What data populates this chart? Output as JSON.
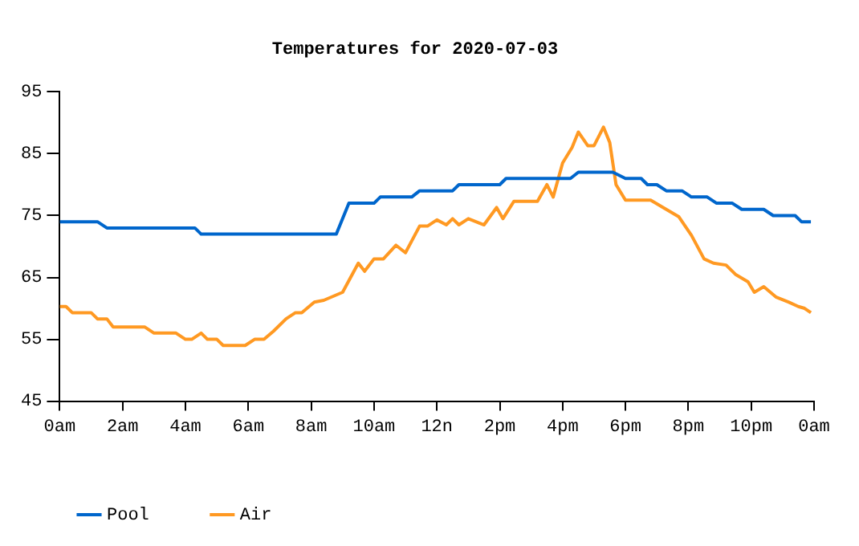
{
  "chart_data": {
    "type": "line",
    "title": "Temperatures for 2020-07-03",
    "xlim": [
      "2020-07-03T00:00",
      "2020-07-04T00:00"
    ],
    "xticks": [
      {
        "value": "2020-07-03T00:00",
        "label": "0am"
      },
      {
        "value": "2020-07-03T02:00",
        "label": "2am"
      },
      {
        "value": "2020-07-03T04:00",
        "label": "4am"
      },
      {
        "value": "2020-07-03T06:00",
        "label": "6am"
      },
      {
        "value": "2020-07-03T08:00",
        "label": "8am"
      },
      {
        "value": "2020-07-03T10:00",
        "label": "10am"
      },
      {
        "value": "2020-07-03T12:00",
        "label": "12n"
      },
      {
        "value": "2020-07-03T14:00",
        "label": "2pm"
      },
      {
        "value": "2020-07-03T16:00",
        "label": "4pm"
      },
      {
        "value": "2020-07-03T18:00",
        "label": "6pm"
      },
      {
        "value": "2020-07-03T20:00",
        "label": "8pm"
      },
      {
        "value": "2020-07-03T22:00",
        "label": "10pm"
      },
      {
        "value": "2020-07-04T00:00",
        "label": "0am"
      }
    ],
    "ylim": [
      45,
      95
    ],
    "yticks": [
      45,
      55,
      65,
      75,
      85,
      95
    ],
    "grid": false,
    "legend": "bottom left",
    "marker": "none",
    "line_style": "solid",
    "series": [
      {
        "name": "Pool",
        "color": "#0066cc",
        "x": [
          "2020-07-03T00:00",
          "2020-07-03T01:12",
          "2020-07-03T01:30",
          "2020-07-03T04:18",
          "2020-07-03T04:30",
          "2020-07-03T08:48",
          "2020-07-03T09:12",
          "2020-07-03T10:00",
          "2020-07-03T10:12",
          "2020-07-03T11:12",
          "2020-07-03T11:27",
          "2020-07-03T12:30",
          "2020-07-03T12:42",
          "2020-07-03T14:00",
          "2020-07-03T14:12",
          "2020-07-03T16:15",
          "2020-07-03T16:30",
          "2020-07-03T17:36",
          "2020-07-03T18:00",
          "2020-07-03T18:30",
          "2020-07-03T18:42",
          "2020-07-03T19:00",
          "2020-07-03T19:18",
          "2020-07-03T19:48",
          "2020-07-03T20:06",
          "2020-07-03T20:36",
          "2020-07-03T20:54",
          "2020-07-03T21:24",
          "2020-07-03T21:42",
          "2020-07-03T22:24",
          "2020-07-03T22:42",
          "2020-07-03T23:24",
          "2020-07-03T23:36",
          "2020-07-03T23:54"
        ],
        "values": [
          74,
          74,
          73,
          73,
          72,
          72,
          77,
          77,
          78,
          78,
          79,
          79,
          80,
          80,
          81,
          81,
          82,
          82,
          81,
          81,
          80,
          80,
          79,
          79,
          78,
          78,
          77,
          77,
          76,
          76,
          75,
          75,
          74,
          74
        ]
      },
      {
        "name": "Air",
        "color": "#ff9922",
        "x": [
          "2020-07-03T00:00",
          "2020-07-03T00:12",
          "2020-07-03T00:24",
          "2020-07-03T01:00",
          "2020-07-03T01:12",
          "2020-07-03T01:30",
          "2020-07-03T01:42",
          "2020-07-03T02:42",
          "2020-07-03T03:00",
          "2020-07-03T03:42",
          "2020-07-03T04:00",
          "2020-07-03T04:12",
          "2020-07-03T04:30",
          "2020-07-03T04:42",
          "2020-07-03T05:00",
          "2020-07-03T05:12",
          "2020-07-03T05:54",
          "2020-07-03T06:12",
          "2020-07-03T06:30",
          "2020-07-03T06:48",
          "2020-07-03T07:12",
          "2020-07-03T07:30",
          "2020-07-03T07:42",
          "2020-07-03T08:06",
          "2020-07-03T08:24",
          "2020-07-03T09:00",
          "2020-07-03T09:30",
          "2020-07-03T09:42",
          "2020-07-03T10:00",
          "2020-07-03T10:18",
          "2020-07-03T10:42",
          "2020-07-03T11:00",
          "2020-07-03T11:27",
          "2020-07-03T11:42",
          "2020-07-03T12:00",
          "2020-07-03T12:18",
          "2020-07-03T12:30",
          "2020-07-03T12:42",
          "2020-07-03T13:00",
          "2020-07-03T13:30",
          "2020-07-03T13:54",
          "2020-07-03T14:06",
          "2020-07-03T14:27",
          "2020-07-03T15:12",
          "2020-07-03T15:30",
          "2020-07-03T15:42",
          "2020-07-03T16:00",
          "2020-07-03T16:18",
          "2020-07-03T16:30",
          "2020-07-03T16:48",
          "2020-07-03T17:00",
          "2020-07-03T17:18",
          "2020-07-03T17:30",
          "2020-07-03T17:42",
          "2020-07-03T18:00",
          "2020-07-03T18:48",
          "2020-07-03T19:12",
          "2020-07-03T19:42",
          "2020-07-03T20:06",
          "2020-07-03T20:30",
          "2020-07-03T20:48",
          "2020-07-03T21:12",
          "2020-07-03T21:30",
          "2020-07-03T21:54",
          "2020-07-03T22:06",
          "2020-07-03T22:24",
          "2020-07-03T22:48",
          "2020-07-03T23:12",
          "2020-07-03T23:30",
          "2020-07-03T23:42",
          "2020-07-03T23:54"
        ],
        "values": [
          60.3,
          60.3,
          59.3,
          59.3,
          58.3,
          58.3,
          57,
          57,
          56,
          56,
          55,
          55,
          56,
          55,
          55,
          54,
          54,
          55,
          55,
          56.3,
          58.3,
          59.3,
          59.3,
          61,
          61.3,
          62.6,
          67.3,
          66,
          68,
          68,
          70.2,
          69,
          73.3,
          73.3,
          74.3,
          73.5,
          74.5,
          73.5,
          74.5,
          73.5,
          76.3,
          74.5,
          77.3,
          77.3,
          80,
          78,
          83.5,
          86,
          88.5,
          86.3,
          86.3,
          89.3,
          86.8,
          80,
          77.5,
          77.5,
          76.3,
          74.8,
          71.8,
          68,
          67.3,
          67,
          65.5,
          64.3,
          62.6,
          63.5,
          61.8,
          61,
          60.3,
          60,
          59.3
        ]
      }
    ]
  }
}
